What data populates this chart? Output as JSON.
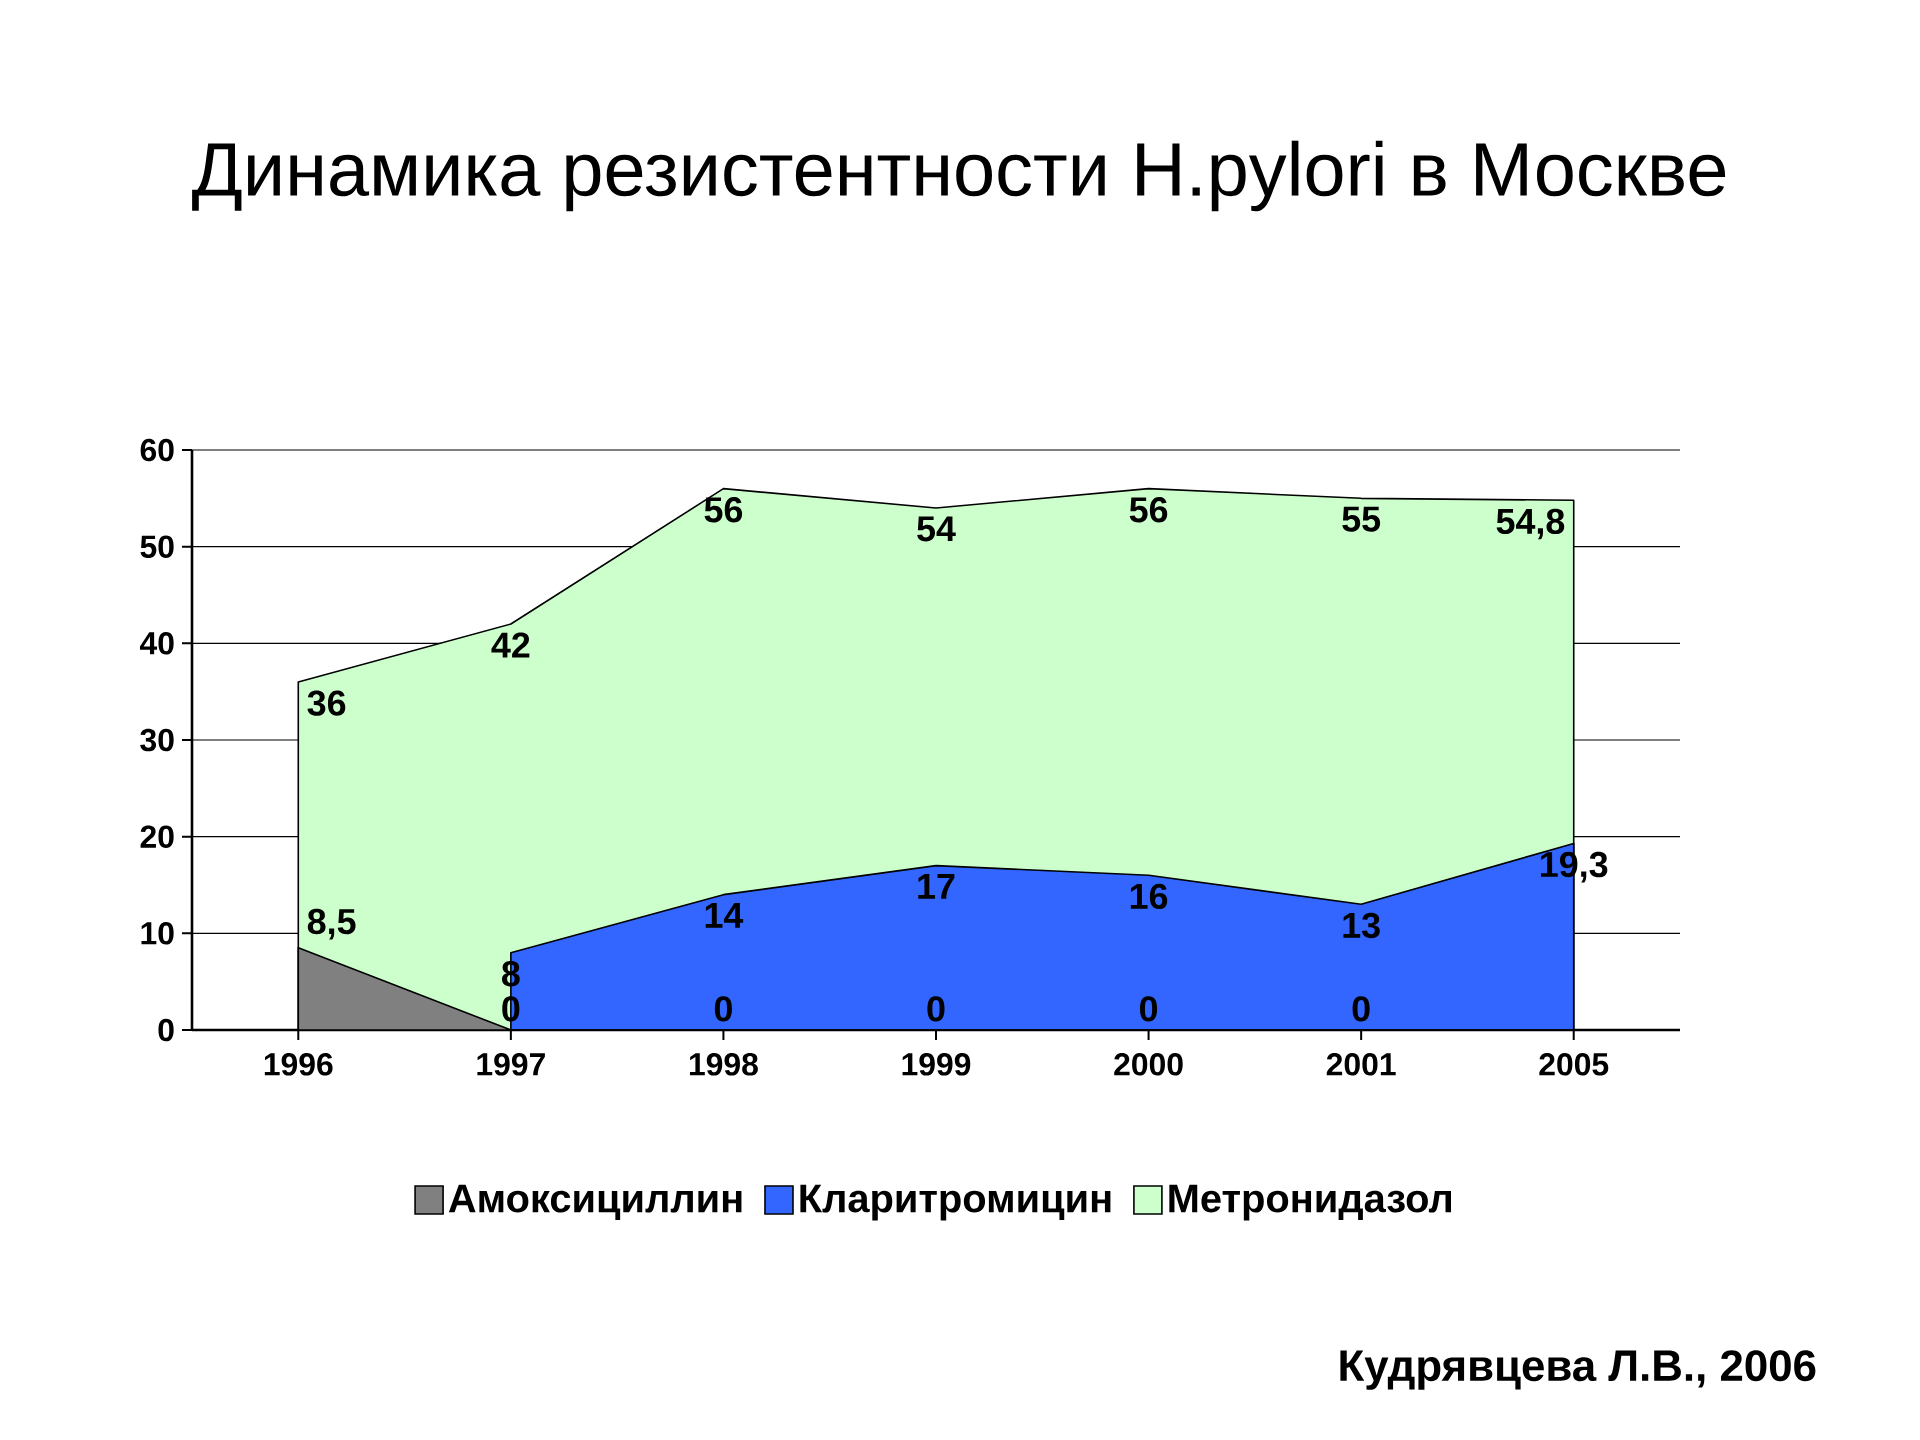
{
  "chart_data": {
    "type": "area",
    "title": "Динамика резистентности H.pylori в Москве",
    "categories": [
      "1996",
      "1997",
      "1998",
      "1999",
      "2000",
      "2001",
      "2005"
    ],
    "series": [
      {
        "name": "Амоксициллин",
        "color": "#808080",
        "values": [
          8.5,
          0,
          0,
          0,
          0,
          0,
          0
        ],
        "value_labels": [
          "8,5",
          "0",
          "0",
          "0",
          "0",
          "0",
          null
        ]
      },
      {
        "name": "Кларитромицин",
        "color": "#3366ff",
        "values": [
          null,
          8,
          14,
          17,
          16,
          13,
          19.3
        ],
        "value_labels": [
          null,
          "8",
          "14",
          "17",
          "16",
          "13",
          "19,3"
        ]
      },
      {
        "name": "Метронидазол",
        "color": "#ccffcc",
        "values": [
          36,
          42,
          56,
          54,
          56,
          55,
          54.8
        ],
        "value_labels": [
          "36",
          "42",
          "56",
          "54",
          "56",
          "55",
          "54,8"
        ]
      }
    ],
    "ylim": [
      0,
      60
    ],
    "yticks": [
      0,
      10,
      20,
      30,
      40,
      50,
      60
    ],
    "grid": "y",
    "legend": "bottom",
    "annotations": [
      "Кудрявцева Л.В., 2006"
    ]
  }
}
